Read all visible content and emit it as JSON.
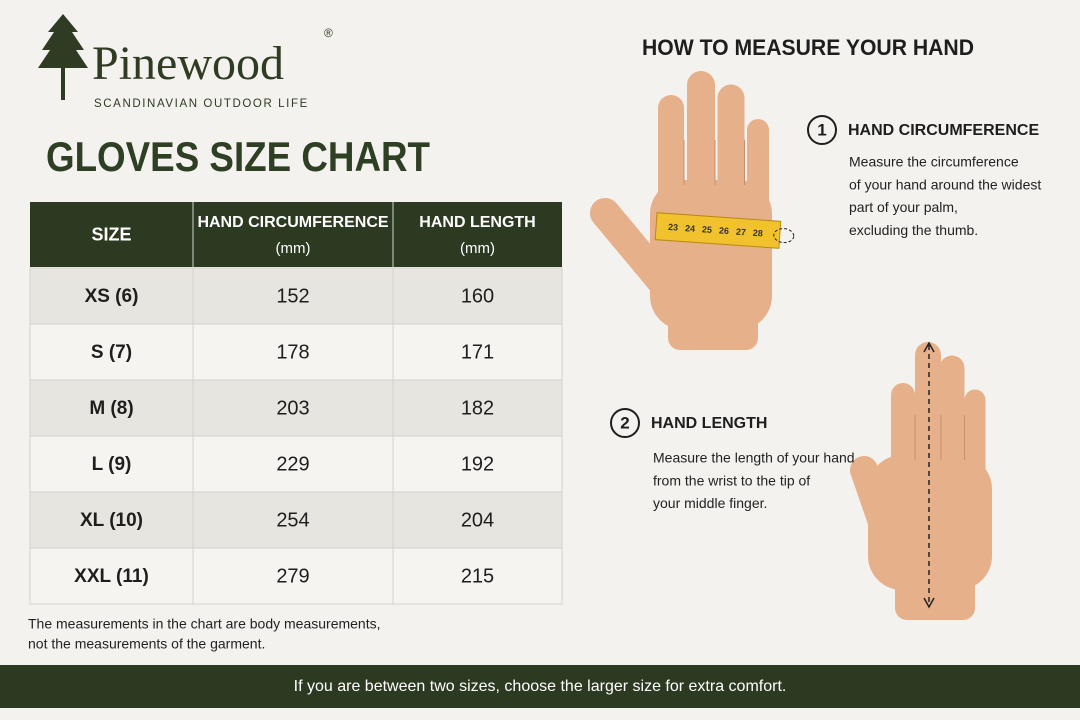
{
  "brand": {
    "name": "Pinewood",
    "mark": "®",
    "tagline": "SCANDINAVIAN OUTDOOR LIFE"
  },
  "title": "GLOVES SIZE CHART",
  "table": {
    "header": [
      {
        "title": "SIZE"
      },
      {
        "title": "HAND CIRCUMFERENCE",
        "unit": "(mm)"
      },
      {
        "title": "HAND LENGTH",
        "unit": "(mm)"
      }
    ],
    "rows": [
      [
        "XS (6)",
        152,
        160
      ],
      [
        "S (7)",
        178,
        171
      ],
      [
        "M (8)",
        203,
        182
      ],
      [
        "L (9)",
        229,
        192
      ],
      [
        "XL (10)",
        254,
        204
      ],
      [
        "XXL (11)",
        279,
        215
      ]
    ]
  },
  "note": [
    "The measurements in the chart are body measurements,",
    "not the measurements of the garment."
  ],
  "guide": {
    "title": "HOW TO MEASURE YOUR HAND",
    "steps": [
      {
        "number": "1",
        "heading": "HAND CIRCUMFERENCE",
        "text": [
          "Measure the circumference",
          "of your hand around the widest",
          "part of your palm,",
          "excluding the thumb."
        ]
      },
      {
        "number": "2",
        "heading": "HAND LENGTH",
        "text": [
          "Measure the length of your hand",
          "from the wrist to the tip of",
          "your middle finger."
        ]
      }
    ],
    "tape_labels": [
      "23",
      "24",
      "25",
      "26",
      "27",
      "28"
    ]
  },
  "footer": "If you are between two sizes, choose the larger size for extra comfort."
}
